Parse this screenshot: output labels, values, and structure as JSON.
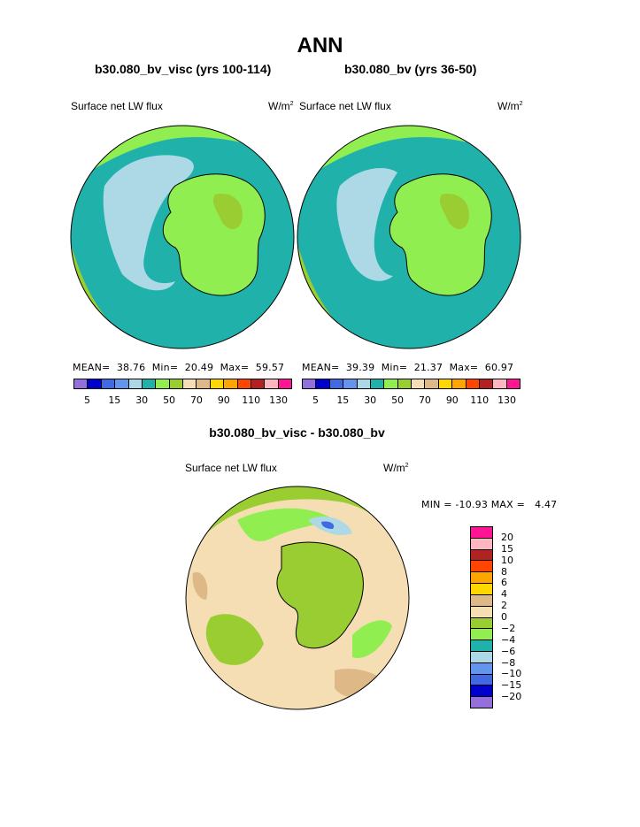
{
  "title": "ANN",
  "panels": [
    {
      "subtitle": "b30.080_bv_visc (yrs 100-114)",
      "left_label": "Surface net LW flux",
      "units": "W/m",
      "units_sup": "2",
      "stats": {
        "mean_label": "MEAN=",
        "mean": "38.76",
        "min_label": "Min=",
        "min": "20.49",
        "max_label": "Max=",
        "max": "59.57"
      }
    },
    {
      "subtitle": "b30.080_bv (yrs 36-50)",
      "left_label": "Surface net LW flux",
      "units": "W/m",
      "units_sup": "2",
      "stats": {
        "mean_label": "MEAN=",
        "mean": "39.39",
        "min_label": "Min=",
        "min": "21.37",
        "max_label": "Max=",
        "max": "60.97"
      }
    }
  ],
  "colorbar": {
    "colors": [
      "#9370db",
      "#0000cd",
      "#4169e1",
      "#6495ed",
      "#add8e6",
      "#20b2aa",
      "#90ee50",
      "#9acd32",
      "#f5deb3",
      "#deb887",
      "#ffd700",
      "#ffa500",
      "#ff4500",
      "#b22222",
      "#ffb6c1",
      "#ff1493"
    ],
    "ticks": [
      "5",
      "15",
      "30",
      "50",
      "70",
      "90",
      "110",
      "130"
    ]
  },
  "diff": {
    "subtitle": "b30.080_bv_visc - b30.080_bv",
    "left_label": "Surface net LW flux",
    "units": "W/m",
    "units_sup": "2",
    "minmax": "MIN = -10.93 MAX =   4.47",
    "colors": [
      "#ff1493",
      "#ffb6c1",
      "#b22222",
      "#ff4500",
      "#ffa500",
      "#ffd700",
      "#deb887",
      "#f5deb3",
      "#9acd32",
      "#90ee50",
      "#20b2aa",
      "#add8e6",
      "#6495ed",
      "#4169e1",
      "#0000cd",
      "#9370db"
    ],
    "ticks": [
      "20",
      "15",
      "10",
      "8",
      "6",
      "4",
      "2",
      "0",
      "−2",
      "−4",
      "−6",
      "−8",
      "−10",
      "−15",
      "−20"
    ]
  },
  "chart_data": [
    {
      "type": "heatmap",
      "title": "b30.080_bv_visc (yrs 100-114)",
      "field": "Surface net LW flux",
      "units": "W/m2",
      "projection": "polar stereographic (south pole)",
      "mean": 38.76,
      "min": 20.49,
      "max": 59.57,
      "levels": [
        5,
        10,
        15,
        20,
        30,
        40,
        50,
        60,
        70,
        80,
        90,
        100,
        110,
        120,
        130
      ]
    },
    {
      "type": "heatmap",
      "title": "b30.080_bv (yrs 36-50)",
      "field": "Surface net LW flux",
      "units": "W/m2",
      "projection": "polar stereographic (south pole)",
      "mean": 39.39,
      "min": 21.37,
      "max": 60.97,
      "levels": [
        5,
        10,
        15,
        20,
        30,
        40,
        50,
        60,
        70,
        80,
        90,
        100,
        110,
        120,
        130
      ]
    },
    {
      "type": "heatmap",
      "title": "b30.080_bv_visc - b30.080_bv",
      "field": "Surface net LW flux",
      "units": "W/m2",
      "projection": "polar stereographic (south pole)",
      "min": -10.93,
      "max": 4.47,
      "levels": [
        -20,
        -15,
        -10,
        -8,
        -6,
        -4,
        -2,
        0,
        2,
        4,
        6,
        8,
        10,
        15,
        20
      ]
    }
  ]
}
